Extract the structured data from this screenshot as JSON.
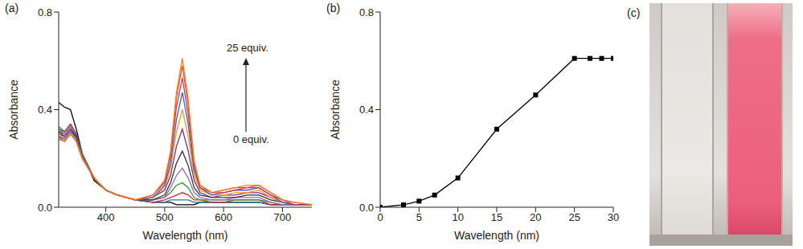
{
  "chart_data": [
    {
      "type": "line",
      "title": "(a)",
      "xlabel": "Wavelength (nm)",
      "ylabel": "Absorbance",
      "xlim": [
        320,
        750
      ],
      "xticks": [
        400,
        500,
        600,
        700
      ],
      "ylim": [
        0,
        0.8
      ],
      "yticks": [
        {
          "value": 0,
          "label": "0.0"
        },
        {
          "value": 0.4,
          "label": "0.4"
        },
        {
          "value": 0.8,
          "label": "0.8"
        }
      ],
      "grid": false,
      "line_style": "solid",
      "annotations": [
        "25 equiv.",
        "0 equiv."
      ],
      "x": [
        320,
        330,
        340,
        350,
        360,
        380,
        400,
        420,
        450,
        480,
        500,
        510,
        520,
        530,
        540,
        550,
        560,
        580,
        600,
        620,
        640,
        660,
        680,
        700,
        720,
        750
      ],
      "series": [
        {
          "color": "#000000",
          "values": [
            0.43,
            0.41,
            0.4,
            0.32,
            0.22,
            0.11,
            0.07,
            0.05,
            0.03,
            0.02,
            0.02,
            0.02,
            0.01,
            0.01,
            0.01,
            0.01,
            0.02,
            0.02,
            0.02,
            0.02,
            0.02,
            0.02,
            0.01,
            0.01,
            0.01,
            0.01
          ]
        },
        {
          "color": "#1f77b4",
          "values": [
            0.33,
            0.31,
            0.34,
            0.3,
            0.22,
            0.12,
            0.07,
            0.05,
            0.03,
            0.02,
            0.02,
            0.03,
            0.03,
            0.03,
            0.03,
            0.02,
            0.02,
            0.02,
            0.02,
            0.02,
            0.02,
            0.02,
            0.01,
            0.01,
            0.01,
            0.01
          ]
        },
        {
          "color": "#d62728",
          "values": [
            0.32,
            0.31,
            0.34,
            0.3,
            0.22,
            0.12,
            0.07,
            0.05,
            0.03,
            0.02,
            0.03,
            0.04,
            0.05,
            0.06,
            0.05,
            0.03,
            0.03,
            0.02,
            0.02,
            0.03,
            0.03,
            0.03,
            0.01,
            0.01,
            0.01,
            0.01
          ]
        },
        {
          "color": "#2ca02c",
          "values": [
            0.32,
            0.3,
            0.33,
            0.29,
            0.22,
            0.12,
            0.07,
            0.05,
            0.03,
            0.03,
            0.04,
            0.06,
            0.09,
            0.1,
            0.08,
            0.04,
            0.03,
            0.03,
            0.03,
            0.03,
            0.03,
            0.03,
            0.02,
            0.01,
            0.01,
            0.01
          ]
        },
        {
          "color": "#9467bd",
          "values": [
            0.31,
            0.3,
            0.33,
            0.29,
            0.21,
            0.12,
            0.07,
            0.05,
            0.03,
            0.03,
            0.04,
            0.08,
            0.13,
            0.16,
            0.12,
            0.06,
            0.04,
            0.03,
            0.03,
            0.04,
            0.04,
            0.04,
            0.02,
            0.01,
            0.01,
            0.01
          ]
        },
        {
          "color": "#333333",
          "values": [
            0.31,
            0.29,
            0.32,
            0.29,
            0.21,
            0.12,
            0.07,
            0.05,
            0.03,
            0.03,
            0.05,
            0.1,
            0.18,
            0.23,
            0.17,
            0.08,
            0.05,
            0.04,
            0.04,
            0.04,
            0.05,
            0.05,
            0.03,
            0.02,
            0.01,
            0.01
          ]
        },
        {
          "color": "#7b2d8e",
          "values": [
            0.3,
            0.29,
            0.32,
            0.28,
            0.21,
            0.12,
            0.07,
            0.05,
            0.03,
            0.04,
            0.07,
            0.13,
            0.25,
            0.32,
            0.23,
            0.11,
            0.06,
            0.04,
            0.05,
            0.05,
            0.06,
            0.06,
            0.04,
            0.02,
            0.01,
            0.01
          ]
        },
        {
          "color": "#ff9900",
          "values": [
            0.3,
            0.28,
            0.31,
            0.28,
            0.21,
            0.12,
            0.07,
            0.05,
            0.03,
            0.04,
            0.08,
            0.16,
            0.31,
            0.4,
            0.29,
            0.13,
            0.07,
            0.05,
            0.05,
            0.06,
            0.06,
            0.07,
            0.04,
            0.02,
            0.01,
            0.01
          ]
        },
        {
          "color": "#3366cc",
          "values": [
            0.29,
            0.28,
            0.31,
            0.28,
            0.21,
            0.12,
            0.07,
            0.05,
            0.03,
            0.04,
            0.09,
            0.18,
            0.36,
            0.47,
            0.34,
            0.15,
            0.08,
            0.05,
            0.06,
            0.07,
            0.07,
            0.08,
            0.05,
            0.02,
            0.01,
            0.01
          ]
        },
        {
          "color": "#cc3366",
          "values": [
            0.29,
            0.27,
            0.3,
            0.27,
            0.2,
            0.12,
            0.07,
            0.05,
            0.03,
            0.05,
            0.1,
            0.21,
            0.41,
            0.53,
            0.38,
            0.17,
            0.08,
            0.06,
            0.06,
            0.07,
            0.08,
            0.08,
            0.05,
            0.03,
            0.01,
            0.01
          ]
        },
        {
          "color": "#e8463a",
          "values": [
            0.28,
            0.27,
            0.3,
            0.27,
            0.2,
            0.12,
            0.07,
            0.05,
            0.03,
            0.05,
            0.11,
            0.22,
            0.45,
            0.58,
            0.42,
            0.18,
            0.09,
            0.06,
            0.07,
            0.08,
            0.08,
            0.09,
            0.06,
            0.03,
            0.02,
            0.01
          ]
        },
        {
          "color": "#ff7f0e",
          "values": [
            0.28,
            0.27,
            0.3,
            0.27,
            0.2,
            0.12,
            0.07,
            0.05,
            0.03,
            0.05,
            0.11,
            0.23,
            0.47,
            0.61,
            0.44,
            0.19,
            0.09,
            0.06,
            0.07,
            0.08,
            0.09,
            0.09,
            0.06,
            0.03,
            0.02,
            0.01
          ]
        }
      ]
    },
    {
      "type": "line",
      "title": "(b)",
      "xlabel": "Wavelength (nm)",
      "ylabel": "Absorbance",
      "xlim": [
        0,
        30
      ],
      "xticks": [
        0,
        5,
        10,
        15,
        20,
        25,
        30
      ],
      "ylim": [
        0,
        0.8
      ],
      "yticks": [
        {
          "value": 0,
          "label": "0.0"
        },
        {
          "value": 0.4,
          "label": "0.4"
        },
        {
          "value": 0.8,
          "label": "0.8"
        }
      ],
      "grid": false,
      "marker": "square",
      "line_style": "solid",
      "x": [
        0,
        3,
        5,
        7,
        10,
        15,
        20,
        25,
        27,
        28.5,
        30
      ],
      "series": [
        {
          "color": "#000000",
          "values": [
            0,
            0.01,
            0.025,
            0.05,
            0.12,
            0.32,
            0.46,
            0.61,
            0.61,
            0.61,
            0.61
          ]
        }
      ]
    },
    {
      "type": "image",
      "title": "(c)"
    }
  ]
}
